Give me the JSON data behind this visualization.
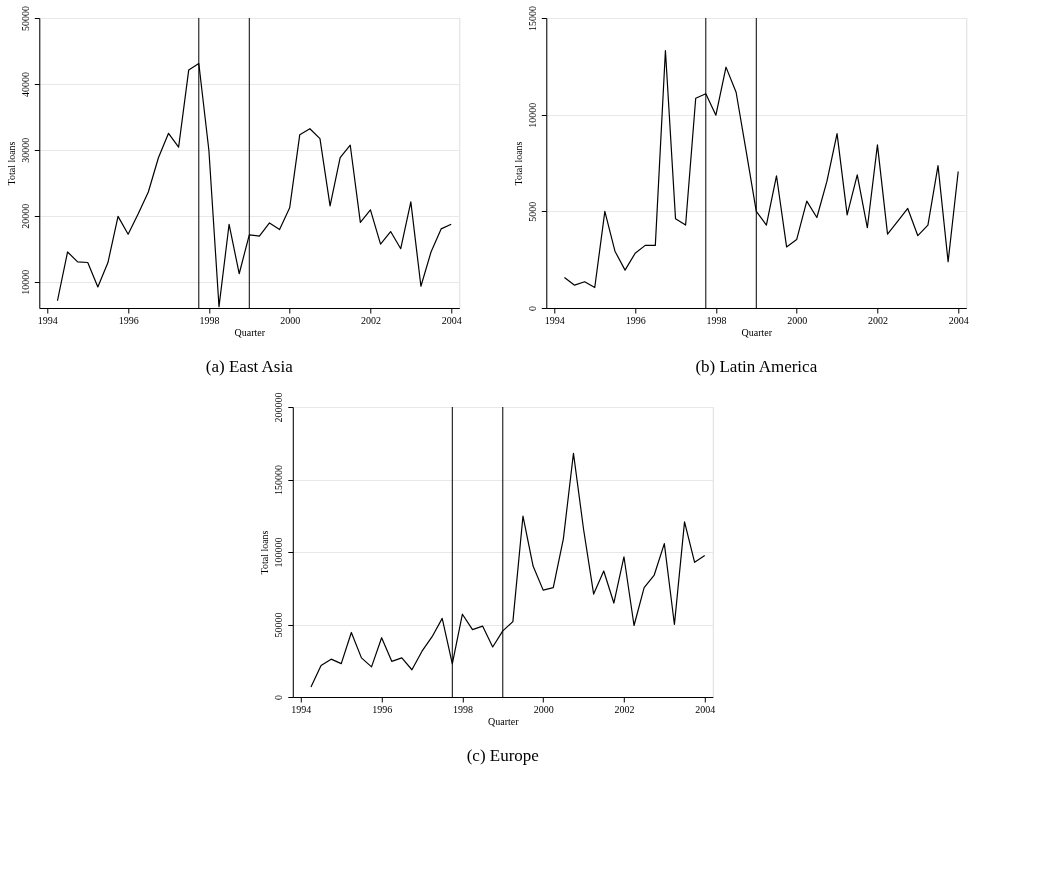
{
  "chart_data": [
    {
      "type": "line",
      "title": "(a) East Asia",
      "xlabel": "Quarter",
      "ylabel": "Total loans",
      "grid": "y",
      "marker": "none",
      "line_style": "solid",
      "x": [
        1994.25,
        1994.5,
        1994.75,
        1995,
        1995.25,
        1995.5,
        1995.75,
        1996,
        1996.25,
        1996.5,
        1996.75,
        1997,
        1997.25,
        1997.5,
        1997.75,
        1998,
        1998.25,
        1998.5,
        1998.75,
        1999,
        1999.25,
        1999.5,
        1999.75,
        2000,
        2000.25,
        2000.5,
        2000.75,
        2001,
        2001.25,
        2001.5,
        2001.75,
        2002,
        2002.25,
        2002.5,
        2002.75,
        2003,
        2003.25,
        2003.5,
        2003.75,
        2004
      ],
      "series": [
        {
          "color": "#000000",
          "values": [
            7100,
            14500,
            13000,
            12900,
            9200,
            12900,
            19900,
            17200,
            20300,
            23600,
            28800,
            32500,
            30400,
            42100,
            43100,
            29900,
            6200,
            18700,
            11200,
            17100,
            16900,
            18900,
            17900,
            21200,
            32300,
            33200,
            31700,
            21500,
            28800,
            30700,
            19000,
            20900,
            15700,
            17600,
            15000,
            22100,
            9300,
            14500,
            18000,
            18700
          ]
        }
      ],
      "xlim": [
        1993.8,
        2004.2
      ],
      "xticks": [
        1994,
        1996,
        1998,
        2000,
        2002,
        2004
      ],
      "ylim": [
        6000,
        50000
      ],
      "yticks": [
        10000,
        20000,
        30000,
        40000,
        50000
      ],
      "ref_lines": [
        {
          "axis": "x",
          "value": 1997.75,
          "color": "#000000"
        },
        {
          "axis": "x",
          "value": 1999,
          "color": "#000000"
        }
      ]
    },
    {
      "type": "line",
      "title": "(b) Latin America",
      "xlabel": "Quarter",
      "ylabel": "Total loans",
      "grid": "y",
      "marker": "none",
      "line_style": "solid",
      "x": [
        1994.25,
        1994.5,
        1994.75,
        1995,
        1995.25,
        1995.5,
        1995.75,
        1996,
        1996.25,
        1996.5,
        1996.75,
        1997,
        1997.25,
        1997.5,
        1997.75,
        1998,
        1998.25,
        1998.5,
        1998.75,
        1999,
        1999.25,
        1999.5,
        1999.75,
        2000,
        2000.25,
        2000.5,
        2000.75,
        2001,
        2001.25,
        2001.5,
        2001.75,
        2002,
        2002.25,
        2002.5,
        2002.75,
        2003,
        2003.25,
        2003.5,
        2003.75,
        2004
      ],
      "series": [
        {
          "color": "#000000",
          "values": [
            1580,
            1180,
            1360,
            1060,
            5000,
            2940,
            1960,
            2830,
            3240,
            3240,
            13320,
            4620,
            4290,
            10850,
            11080,
            9970,
            12460,
            11160,
            8100,
            5000,
            4290,
            6840,
            3160,
            3540,
            5530,
            4680,
            6560,
            9020,
            4820,
            6890,
            4150,
            8440,
            3820,
            4480,
            5150,
            3740,
            4290,
            7360,
            2390,
            7060
          ]
        }
      ],
      "xlim": [
        1993.8,
        2004.2
      ],
      "xticks": [
        1994,
        1996,
        1998,
        2000,
        2002,
        2004
      ],
      "ylim": [
        0,
        15000
      ],
      "yticks": [
        0,
        5000,
        10000,
        15000
      ],
      "ref_lines": [
        {
          "axis": "x",
          "value": 1997.75,
          "color": "#000000"
        },
        {
          "axis": "x",
          "value": 1999,
          "color": "#000000"
        }
      ]
    },
    {
      "type": "line",
      "title": "(c) Europe",
      "xlabel": "Quarter",
      "ylabel": "Total loans",
      "grid": "y",
      "marker": "none",
      "line_style": "solid",
      "x": [
        1994.25,
        1994.5,
        1994.75,
        1995,
        1995.25,
        1995.5,
        1995.75,
        1996,
        1996.25,
        1996.5,
        1996.75,
        1997,
        1997.25,
        1997.5,
        1997.75,
        1998,
        1998.25,
        1998.5,
        1998.75,
        1999,
        1999.25,
        1999.5,
        1999.75,
        2000,
        2000.25,
        2000.5,
        2000.75,
        2001,
        2001.25,
        2001.5,
        2001.75,
        2002,
        2002.25,
        2002.5,
        2002.75,
        2003,
        2003.25,
        2003.5,
        2003.75,
        2004
      ],
      "series": [
        {
          "color": "#000000",
          "values": [
            6900,
            21700,
            26100,
            23000,
            44500,
            27000,
            20800,
            40900,
            24600,
            27000,
            18800,
            31600,
            41600,
            54200,
            22800,
            57100,
            46500,
            48900,
            34500,
            45600,
            52000,
            124800,
            90300,
            73700,
            75400,
            109100,
            168100,
            115700,
            71000,
            86900,
            64800,
            96700,
            49300,
            75400,
            84100,
            105800,
            50000,
            120800,
            92900,
            97600
          ]
        }
      ],
      "xlim": [
        1993.8,
        2004.2
      ],
      "xticks": [
        1994,
        1996,
        1998,
        2000,
        2002,
        2004
      ],
      "ylim": [
        0,
        200000
      ],
      "yticks": [
        0,
        50000,
        100000,
        150000,
        200000
      ],
      "ref_lines": [
        {
          "axis": "x",
          "value": 1997.75,
          "color": "#000000"
        },
        {
          "axis": "x",
          "value": 1999,
          "color": "#000000"
        }
      ]
    }
  ]
}
